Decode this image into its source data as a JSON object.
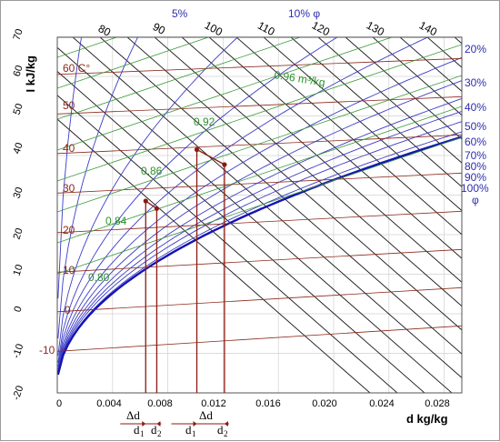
{
  "chart_data": {
    "type": "diagram",
    "y_axis_label": "I  kJ/kg",
    "x_axis_label": "d  kg/kg",
    "x_ticks": [
      "0",
      "0.004",
      "0.008",
      "0.012",
      "0.016",
      "0.020",
      "0.024",
      "0.028"
    ],
    "y_ticks": [
      "-20",
      "-10",
      "0",
      "10",
      "20",
      "30",
      "40",
      "50",
      "60",
      "70"
    ],
    "enthalpy_labels": [
      "80",
      "90",
      "100",
      "110",
      "120",
      "130",
      "140"
    ],
    "temperature_labels": [
      "-10",
      "0",
      "10",
      "20",
      "30",
      "40",
      "50",
      "60 C°"
    ],
    "volume_labels": [
      "0.80",
      "0.84",
      "0.86",
      "0.92",
      "0.96 m³/kg"
    ],
    "humidity_labels": [
      "5%",
      "10% φ",
      "20%",
      "30%",
      "40%",
      "50%",
      "60%",
      "70%",
      "80%",
      "90%",
      "100%",
      "φ"
    ],
    "annotations": {
      "delta_d": "Δd",
      "d_symbol": "d",
      "sub1": "1",
      "sub2": "2"
    },
    "process_points": [
      {
        "d": 0.0064,
        "I": 28.5
      },
      {
        "d": 0.0072,
        "I": 26.6
      },
      {
        "d": 0.0101,
        "I": 41.5
      },
      {
        "d": 0.0121,
        "I": 37.7
      }
    ],
    "colors": {
      "enthalpy_lines": "#1a1a1a",
      "temperature_lines": "#8b2a1c",
      "volume_lines": "#3a9a3a",
      "humidity_lines": "#3c3cc8",
      "saturation": "#1414b4",
      "process": "#8b1a10"
    }
  }
}
